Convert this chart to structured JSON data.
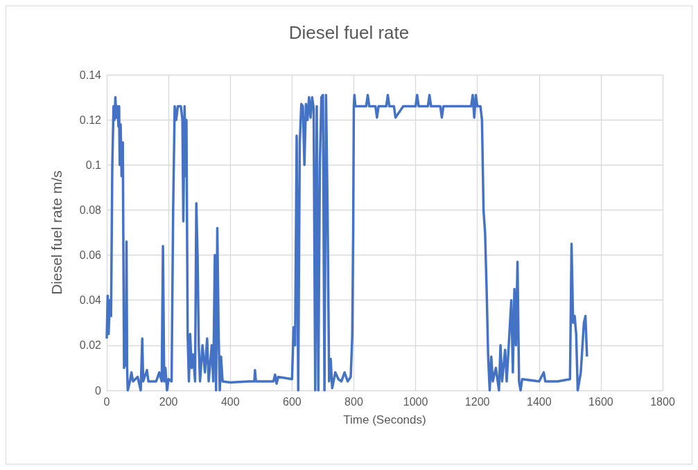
{
  "chart_data": {
    "type": "line",
    "title": "Diesel fuel rate",
    "xlabel": "Time (Seconds)",
    "ylabel": "Diesel fuel rate m/s",
    "xlim": [
      0,
      1800
    ],
    "xticks": [
      0,
      200,
      400,
      600,
      800,
      1000,
      1200,
      1400,
      1600,
      1800
    ],
    "ylim": [
      0,
      0.14
    ],
    "yticks": [
      0,
      0.02,
      0.04,
      0.06,
      0.08,
      0.1,
      0.12,
      0.14
    ],
    "grid": true,
    "marker": "none",
    "line_style": "solid",
    "x": [
      0,
      3,
      6,
      10,
      14,
      18,
      22,
      25,
      28,
      31,
      35,
      38,
      40,
      42,
      45,
      48,
      52,
      56,
      60,
      62,
      64,
      66,
      68,
      75,
      80,
      85,
      100,
      110,
      115,
      118,
      130,
      135,
      160,
      170,
      178,
      182,
      186,
      190,
      195,
      200,
      210,
      215,
      220,
      225,
      230,
      240,
      245,
      248,
      252,
      256,
      258,
      262,
      266,
      270,
      275,
      280,
      286,
      290,
      294,
      298,
      302,
      310,
      318,
      325,
      330,
      340,
      345,
      350,
      354,
      358,
      362,
      366,
      370,
      375,
      400,
      460,
      478,
      480,
      483,
      540,
      545,
      550,
      555,
      600,
      605,
      610,
      615,
      620,
      625,
      630,
      635,
      640,
      645,
      650,
      655,
      660,
      665,
      670,
      675,
      680,
      685,
      690,
      695,
      700,
      705,
      710,
      715,
      720,
      725,
      730,
      740,
      750,
      760,
      770,
      780,
      790,
      795,
      798,
      800,
      802,
      805,
      840,
      845,
      850,
      870,
      875,
      880,
      905,
      910,
      915,
      930,
      935,
      960,
      1000,
      1005,
      1010,
      1040,
      1045,
      1050,
      1080,
      1085,
      1090,
      1180,
      1185,
      1190,
      1195,
      1200,
      1210,
      1215,
      1220,
      1225,
      1230,
      1235,
      1240,
      1245,
      1250,
      1260,
      1270,
      1275,
      1280,
      1290,
      1295,
      1310,
      1315,
      1320,
      1325,
      1330,
      1335,
      1340,
      1345,
      1400,
      1415,
      1420,
      1460,
      1500,
      1505,
      1510,
      1515,
      1520,
      1525,
      1535,
      1545,
      1550,
      1555
    ],
    "series": [
      {
        "color": "#4472c4",
        "values": [
          0.023,
          0.042,
          0.025,
          0.04,
          0.033,
          0.1,
          0.126,
          0.12,
          0.13,
          0.121,
          0.126,
          0.117,
          0.126,
          0.1,
          0.118,
          0.095,
          0.11,
          0.01,
          0.02,
          0.011,
          0.066,
          0.01,
          0,
          0.004,
          0.008,
          0.004,
          0.006,
          0,
          0.023,
          0.004,
          0.009,
          0.004,
          0.004,
          0.008,
          0.004,
          0.064,
          0.004,
          0.01,
          0,
          0.005,
          0.004,
          0.08,
          0.126,
          0.12,
          0.126,
          0.126,
          0.12,
          0.075,
          0.126,
          0.095,
          0.12,
          0.025,
          0.004,
          0.025,
          0.01,
          0.016,
          0.004,
          0.083,
          0.06,
          0.02,
          0.004,
          0.02,
          0.008,
          0.023,
          0.004,
          0.02,
          0.004,
          0.06,
          0,
          0.072,
          0.027,
          0,
          0.015,
          0.004,
          0.0035,
          0.004,
          0.004,
          0.009,
          0.004,
          0.004,
          0.007,
          0.003,
          0.006,
          0.005,
          0.028,
          0.02,
          0.113,
          0,
          0.11,
          0.127,
          0.126,
          0.1,
          0.127,
          0.12,
          0.13,
          0.121,
          0.13,
          0.125,
          0,
          0.126,
          0,
          0.1,
          0.13,
          0.131,
          0,
          0.131,
          0.08,
          0.004,
          0.014,
          0.001,
          0.008,
          0.005,
          0.004,
          0.008,
          0.004,
          0.006,
          0.024,
          0.07,
          0.126,
          0.131,
          0.126,
          0.126,
          0.131,
          0.126,
          0.126,
          0.121,
          0.126,
          0.126,
          0.131,
          0.126,
          0.126,
          0.121,
          0.126,
          0.126,
          0.131,
          0.126,
          0.126,
          0.131,
          0.126,
          0.126,
          0.121,
          0.126,
          0.126,
          0.131,
          0.121,
          0.131,
          0.126,
          0.126,
          0.12,
          0.08,
          0.07,
          0.045,
          0.015,
          0,
          0.015,
          0.004,
          0.01,
          0,
          0.02,
          0.004,
          0.018,
          0.004,
          0.04,
          0.008,
          0.045,
          0.02,
          0.057,
          0.004,
          0,
          0.005,
          0.004,
          0.008,
          0.004,
          0.004,
          0.005,
          0.065,
          0.03,
          0.033,
          0.025,
          0,
          0.008,
          0.03,
          0.033,
          0.015
        ]
      }
    ]
  }
}
